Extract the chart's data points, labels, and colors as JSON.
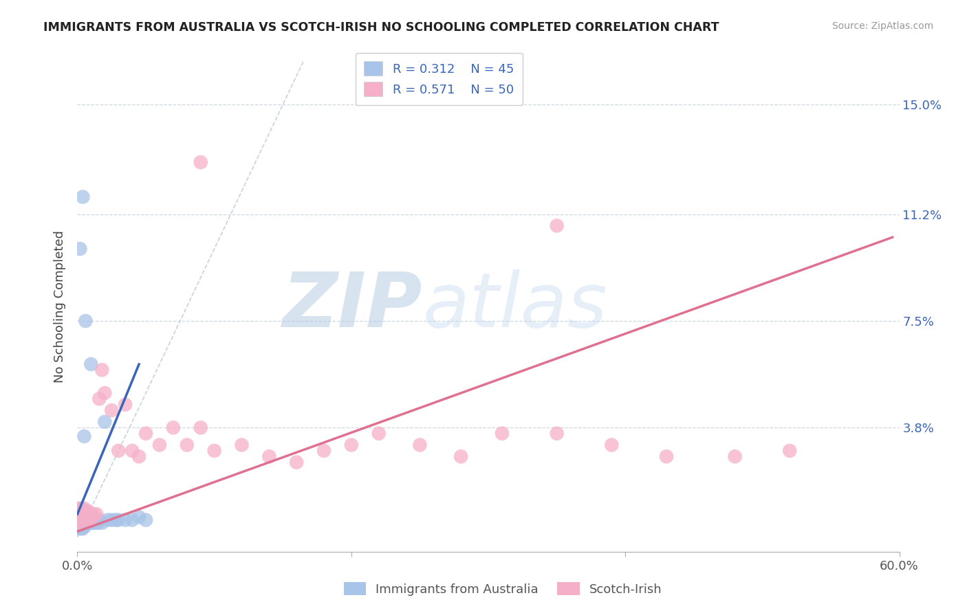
{
  "title": "IMMIGRANTS FROM AUSTRALIA VS SCOTCH-IRISH NO SCHOOLING COMPLETED CORRELATION CHART",
  "source": "Source: ZipAtlas.com",
  "ylabel": "No Schooling Completed",
  "legend_label1": "Immigrants from Australia",
  "legend_label2": "Scotch-Irish",
  "legend_r1": "R = 0.312",
  "legend_n1": "N = 45",
  "legend_r2": "R = 0.571",
  "legend_n2": "N = 50",
  "color_blue": "#a8c4e8",
  "color_pink": "#f5afc8",
  "color_line_blue": "#3a65b8",
  "color_line_pink": "#e07090",
  "color_diag": "#b8c8d8",
  "color_grid": "#c8d4dc",
  "color_text": "#3a65b8",
  "watermark_color": "#ccdaee",
  "background_color": "#ffffff",
  "xlim": [
    0.0,
    0.6
  ],
  "ylim": [
    -0.005,
    0.165
  ],
  "yticks": [
    0.0,
    0.038,
    0.075,
    0.112,
    0.15
  ],
  "ytick_labels": [
    "",
    "3.8%",
    "7.5%",
    "11.2%",
    "15.0%"
  ],
  "xtick_positions": [
    0.0,
    0.2,
    0.4,
    0.6
  ],
  "xtick_labels": [
    "0.0%",
    "",
    "",
    "60.0%"
  ],
  "blue_scatter_x": [
    0.001,
    0.001,
    0.001,
    0.002,
    0.002,
    0.002,
    0.003,
    0.003,
    0.003,
    0.003,
    0.004,
    0.004,
    0.004,
    0.004,
    0.005,
    0.005,
    0.005,
    0.006,
    0.006,
    0.007,
    0.007,
    0.008,
    0.008,
    0.009,
    0.01,
    0.01,
    0.011,
    0.012,
    0.013,
    0.014,
    0.015,
    0.016,
    0.018,
    0.02,
    0.022,
    0.025,
    0.028,
    0.03,
    0.035,
    0.04,
    0.045,
    0.05,
    0.002,
    0.004,
    0.006
  ],
  "blue_scatter_y": [
    0.003,
    0.005,
    0.008,
    0.004,
    0.006,
    0.009,
    0.003,
    0.005,
    0.007,
    0.01,
    0.003,
    0.005,
    0.007,
    0.009,
    0.004,
    0.006,
    0.035,
    0.004,
    0.006,
    0.005,
    0.007,
    0.005,
    0.007,
    0.006,
    0.005,
    0.06,
    0.005,
    0.006,
    0.005,
    0.006,
    0.005,
    0.006,
    0.005,
    0.04,
    0.006,
    0.006,
    0.006,
    0.006,
    0.006,
    0.006,
    0.007,
    0.006,
    0.1,
    0.118,
    0.075
  ],
  "pink_scatter_x": [
    0.001,
    0.001,
    0.001,
    0.002,
    0.002,
    0.003,
    0.003,
    0.004,
    0.004,
    0.005,
    0.005,
    0.006,
    0.006,
    0.007,
    0.007,
    0.008,
    0.008,
    0.009,
    0.01,
    0.01,
    0.012,
    0.014,
    0.016,
    0.018,
    0.02,
    0.025,
    0.03,
    0.035,
    0.04,
    0.045,
    0.05,
    0.06,
    0.07,
    0.08,
    0.09,
    0.1,
    0.12,
    0.14,
    0.16,
    0.18,
    0.2,
    0.22,
    0.25,
    0.28,
    0.31,
    0.35,
    0.39,
    0.43,
    0.48,
    0.52
  ],
  "pink_scatter_y": [
    0.005,
    0.007,
    0.01,
    0.006,
    0.008,
    0.006,
    0.008,
    0.006,
    0.008,
    0.007,
    0.01,
    0.006,
    0.009,
    0.006,
    0.008,
    0.006,
    0.009,
    0.007,
    0.006,
    0.008,
    0.008,
    0.008,
    0.048,
    0.058,
    0.05,
    0.044,
    0.03,
    0.046,
    0.03,
    0.028,
    0.036,
    0.032,
    0.038,
    0.032,
    0.038,
    0.03,
    0.032,
    0.028,
    0.026,
    0.03,
    0.032,
    0.036,
    0.032,
    0.028,
    0.036,
    0.036,
    0.032,
    0.028,
    0.028,
    0.03
  ],
  "pink_outlier_x": [
    0.35
  ],
  "pink_outlier_y": [
    0.108
  ],
  "pink_top_x": [
    0.09
  ],
  "pink_top_y": [
    0.13
  ],
  "blue_line_x": [
    0.0,
    0.045
  ],
  "blue_line_y": [
    0.008,
    0.06
  ],
  "pink_line_x": [
    0.0,
    0.595
  ],
  "pink_line_y": [
    0.002,
    0.104
  ],
  "diag_line_x": [
    0.0,
    0.165
  ],
  "diag_line_y": [
    0.0,
    0.165
  ]
}
